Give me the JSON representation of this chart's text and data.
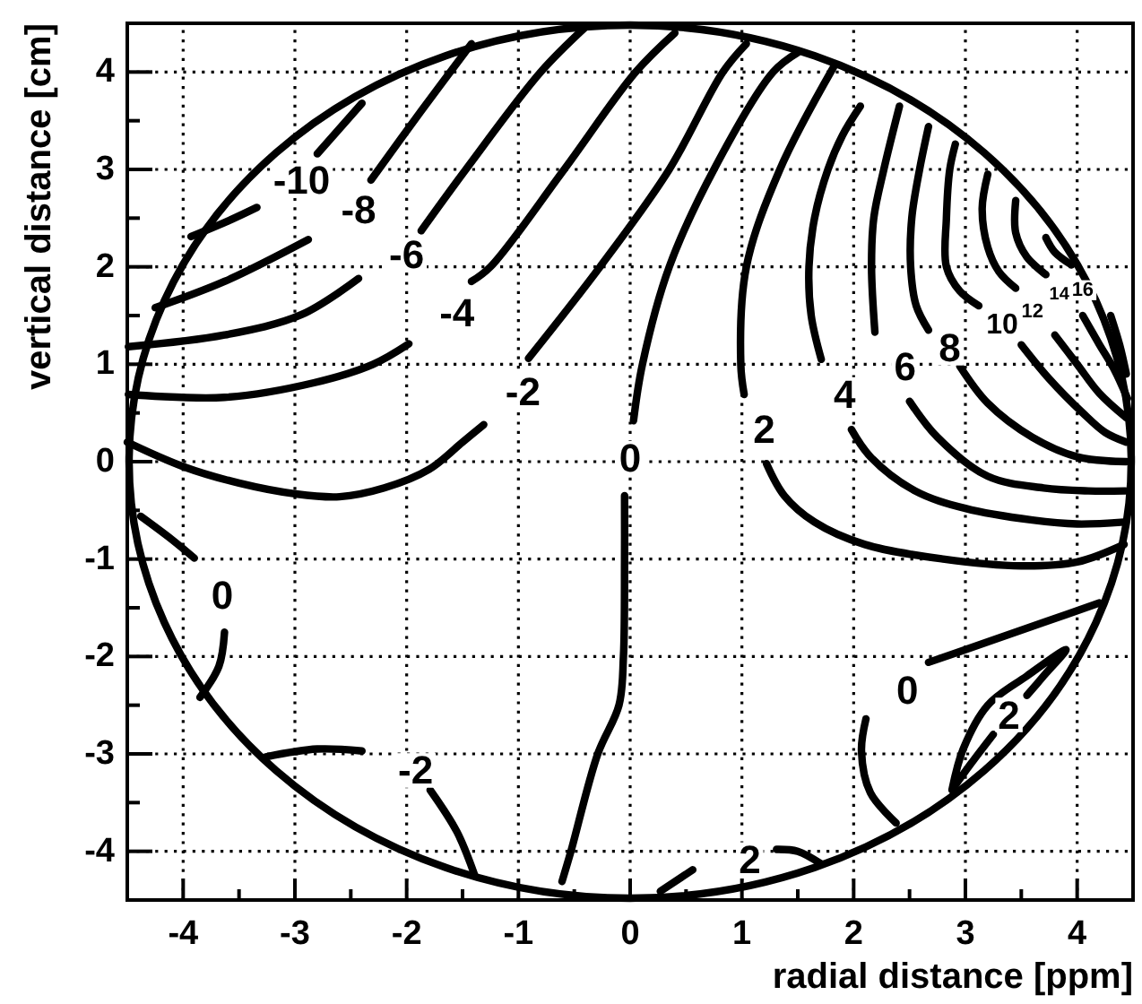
{
  "chart_data": {
    "type": "line",
    "xlabel": "radial distance [ppm]",
    "ylabel": "vertical distance [cm]",
    "xlim": [
      -4.5,
      4.5
    ],
    "ylim": [
      -4.5,
      4.5
    ],
    "xticks": [
      -4,
      {
        "value": -3.5,
        "label": null
      },
      -3,
      {
        "value": -2.5,
        "label": null
      },
      -2,
      {
        "value": -1.5,
        "label": null
      },
      -1,
      {
        "value": -0.5,
        "label": null
      },
      0,
      {
        "value": 0.5,
        "label": null
      },
      1,
      {
        "value": 1.5,
        "label": null
      },
      2,
      {
        "value": 2.5,
        "label": null
      },
      3,
      {
        "value": 3.5,
        "label": null
      },
      4
    ],
    "yticks": [
      -4,
      {
        "value": -3.5,
        "label": null
      },
      -3,
      {
        "value": -2.5,
        "label": null
      },
      -2,
      {
        "value": -1.5,
        "label": null
      },
      -1,
      {
        "value": -0.5,
        "label": null
      },
      0,
      {
        "value": 0.5,
        "label": null
      },
      1,
      {
        "value": 1.5,
        "label": null
      },
      2,
      {
        "value": 2.5,
        "label": null
      },
      3,
      {
        "value": 3.5,
        "label": null
      },
      4
    ],
    "grid": true,
    "series": [
      {
        "name": "-10",
        "color": "#000000",
        "x": [
          -3.93,
          -3.6,
          -3.34,
          -2.94,
          -2.8,
          -2.6,
          -2.4
        ],
        "values": [
          2.31,
          2.47,
          2.61,
          null,
          3.16,
          3.42,
          3.68
        ]
      },
      {
        "name": "-8",
        "color": "#000000",
        "x": [
          -4.25,
          -3.63,
          -2.88,
          -2.43,
          -2.32,
          -1.87,
          -1.42
        ],
        "values": [
          1.58,
          1.85,
          2.28,
          null,
          2.89,
          3.6,
          4.29
        ]
      },
      {
        "name": "-6",
        "color": "#000000",
        "x": [
          -4.49,
          -3.63,
          -2.94,
          -2.43,
          -2,
          -1.87,
          -1.47,
          -0.8,
          -0.41
        ],
        "values": [
          1.18,
          1.3,
          1.51,
          1.88,
          null,
          2.37,
          3,
          4,
          4.45
        ]
      },
      {
        "name": "-4",
        "color": "#000000",
        "x": [
          -4.49,
          -3.63,
          -2.83,
          -2.3,
          -1.98,
          -1.55,
          -1.42,
          -1.25,
          -0.59,
          0.05,
          0.4
        ],
        "values": [
          0.69,
          0.66,
          0.81,
          1,
          1.21,
          null,
          1.85,
          2,
          3,
          4,
          4.4
        ]
      },
      {
        "name": "-2",
        "color": "#000000",
        "x": [
          -4.5,
          -4,
          -3.5,
          -3,
          -2.6,
          -2.2,
          -1.8,
          -1.5,
          -1.31,
          -0.96,
          -0.91,
          -0.27,
          0.35,
          0.83,
          1.04
        ],
        "values": [
          0.2,
          -0.05,
          -0.22,
          -0.33,
          -0.36,
          -0.27,
          -0.08,
          0.2,
          0.38,
          null,
          1.06,
          2,
          3,
          4,
          4.29
        ]
      },
      {
        "name": "0",
        "color": "#000000",
        "x": [
          1.5,
          1.28,
          0.75,
          0.35,
          0.11,
          0.03,
          0,
          -0.05,
          -0.05,
          -0.06,
          -0.1,
          -0.29,
          -0.53,
          -0.61
        ],
        "values": [
          4.2,
          4,
          3,
          2,
          1,
          0.42,
          null,
          -0.35,
          -1,
          -2,
          -2.5,
          -3,
          -4,
          -4.31
        ]
      },
      {
        "name": "2",
        "color": "#000000",
        "x": [
          1.82,
          1.34,
          1.04,
          0.99,
          1.02,
          1.2,
          1.22,
          1.38,
          1.65,
          2.1,
          2.8,
          3.5,
          4,
          4.42
        ],
        "values": [
          4.05,
          3,
          2,
          1,
          0.69,
          null,
          -0.02,
          -0.35,
          -0.62,
          -0.85,
          -1,
          -1.07,
          -1.03,
          -0.85
        ]
      },
      {
        "name": "4",
        "color": "#000000",
        "x": [
          2.06,
          1.9,
          1.77,
          1.65,
          1.6,
          1.62,
          1.71,
          1.92,
          1.98,
          2.15,
          2.55,
          3,
          3.6,
          4,
          4.42
        ],
        "values": [
          3.65,
          3.35,
          3,
          2.5,
          2,
          1.5,
          1.05,
          null,
          0.33,
          0.05,
          -0.3,
          -0.48,
          -0.6,
          -0.64,
          -0.62
        ]
      },
      {
        "name": "6",
        "color": "#000000",
        "x": [
          2.41,
          2.27,
          2.18,
          2.16,
          2.19,
          2.46,
          2.5,
          2.75,
          3.2,
          3.7,
          4.1,
          4.43
        ],
        "values": [
          3.65,
          3,
          2.5,
          2,
          1.33,
          null,
          0.62,
          0.25,
          -0.15,
          -0.27,
          -0.3,
          -0.3
        ]
      },
      {
        "name": "8",
        "color": "#000000",
        "x": [
          2.67,
          2.59,
          2.52,
          2.51,
          2.56,
          2.67,
          2.86,
          2.95,
          3.2,
          3.6,
          4,
          4.44
        ],
        "values": [
          3.44,
          3,
          2.5,
          2,
          1.6,
          1.35,
          null,
          0.98,
          0.6,
          0.25,
          0.05,
          0
        ]
      },
      {
        "name": "10",
        "color": "#000000",
        "x": [
          2.91,
          2.86,
          2.83,
          2.83,
          2.95,
          3.12,
          3.33,
          3.5,
          3.75,
          4.05,
          4.25,
          4.44
        ],
        "values": [
          3.26,
          3,
          2.5,
          2,
          1.75,
          1.6,
          null,
          1.2,
          0.85,
          0.5,
          0.3,
          0.2
        ]
      },
      {
        "name": "12",
        "color": "#000000",
        "x": [
          3.2,
          3.15,
          3.2,
          3.3,
          3.45,
          3.6,
          3.8,
          4,
          4.2,
          4.44
        ],
        "values": [
          2.95,
          2.6,
          2.2,
          1.95,
          1.78,
          null,
          1.3,
          1,
          0.7,
          0.45
        ]
      },
      {
        "name": "14",
        "color": "#000000",
        "x": [
          3.45,
          3.45,
          3.55,
          3.72,
          3.84,
          4.05,
          4.2,
          4.33,
          4.45
        ],
        "values": [
          2.68,
          2.35,
          2.1,
          1.92,
          null,
          1.5,
          1.2,
          0.95,
          0.65
        ]
      },
      {
        "name": "16",
        "color": "#000000",
        "x": [
          3.72,
          3.8,
          3.95,
          4.05,
          4.3,
          4.38,
          4.44
        ],
        "values": [
          2.3,
          2.15,
          2.02,
          null,
          1.5,
          1.2,
          0.9
        ]
      },
      {
        "name": "0",
        "color": "#000000",
        "x": [
          -4.38,
          -4.1,
          -3.9,
          -3.65,
          -3.63,
          -3.68,
          -3.85
        ],
        "values": [
          -0.56,
          -0.8,
          -0.99,
          null,
          -1.75,
          -2.1,
          -2.42
        ]
      },
      {
        "name": "-2",
        "color": "#000000",
        "x": [
          -3.26,
          -2.8,
          -2.4,
          -1.92,
          -1.79,
          -1.55,
          -1.39
        ],
        "values": [
          -3.03,
          -2.95,
          -2.97,
          null,
          -3.37,
          -3.8,
          -4.25
        ]
      },
      {
        "name": "2",
        "color": "#000000",
        "x": [
          0.27,
          0.56,
          1.07,
          1.31,
          1.5,
          1.71
        ],
        "values": [
          -4.41,
          -4.19,
          null,
          -3.98,
          -4,
          -4.13
        ]
      },
      {
        "name": "0",
        "color": "#000000",
        "x": [
          4.2,
          3.7,
          3.2,
          2.67,
          2.48,
          2.11,
          2.07,
          2.15,
          2.38
        ],
        "values": [
          -1.45,
          -1.65,
          -1.85,
          -2.06,
          null,
          -2.64,
          -2.97,
          -3.4,
          -3.71
        ]
      },
      {
        "name": "2",
        "color": "#000000",
        "x": [
          2.88,
          2.98,
          3.2,
          3.55,
          3.9,
          3.7,
          3.55,
          3.39,
          3.25,
          3.05,
          2.88
        ],
        "values": [
          -3.37,
          -2.95,
          -2.5,
          -2.2,
          -1.93,
          -2.2,
          -2.4,
          null,
          -2.8,
          -3.1,
          -3.37
        ]
      }
    ]
  }
}
